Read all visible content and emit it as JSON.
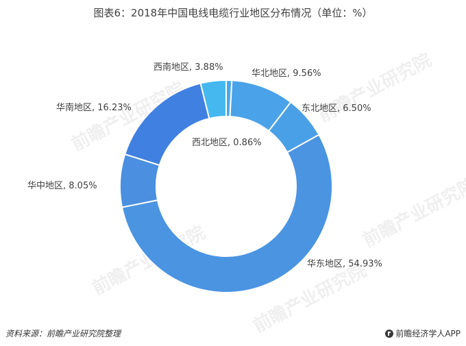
{
  "title": "图表6：2018年中国电线电缆行业地区分布情况（单位：%）",
  "footer": {
    "source": "资料来源：前瞻产业研究院整理",
    "brand": "前瞻经济学人APP"
  },
  "watermark": "前瞻产业研究院",
  "chart_data": {
    "type": "pie",
    "variant": "donut",
    "title": "图表6：2018年中国电线电缆行业地区分布情况（单位：%）",
    "unit": "%",
    "slices": [
      {
        "label": "西北地区",
        "value": 0.86,
        "display": "西北地区, 0.86%",
        "color": "#4aa8ec"
      },
      {
        "label": "华北地区",
        "value": 9.56,
        "display": "华北地区, 9.56%",
        "color": "#4aa3e8"
      },
      {
        "label": "东北地区",
        "value": 6.5,
        "display": "东北地区, 6.50%",
        "color": "#4aa0e6"
      },
      {
        "label": "华东地区",
        "value": 54.93,
        "display": "华东地区, 54.93%",
        "color": "#4a94e2"
      },
      {
        "label": "华中地区",
        "value": 8.05,
        "display": "华中地区, 8.05%",
        "color": "#4a8fe0"
      },
      {
        "label": "华南地区",
        "value": 16.23,
        "display": "华南地区, 16.23%",
        "color": "#4080e0"
      },
      {
        "label": "西南地区",
        "value": 3.88,
        "display": "西南地区, 3.88%",
        "color": "#46b8f0"
      }
    ]
  }
}
